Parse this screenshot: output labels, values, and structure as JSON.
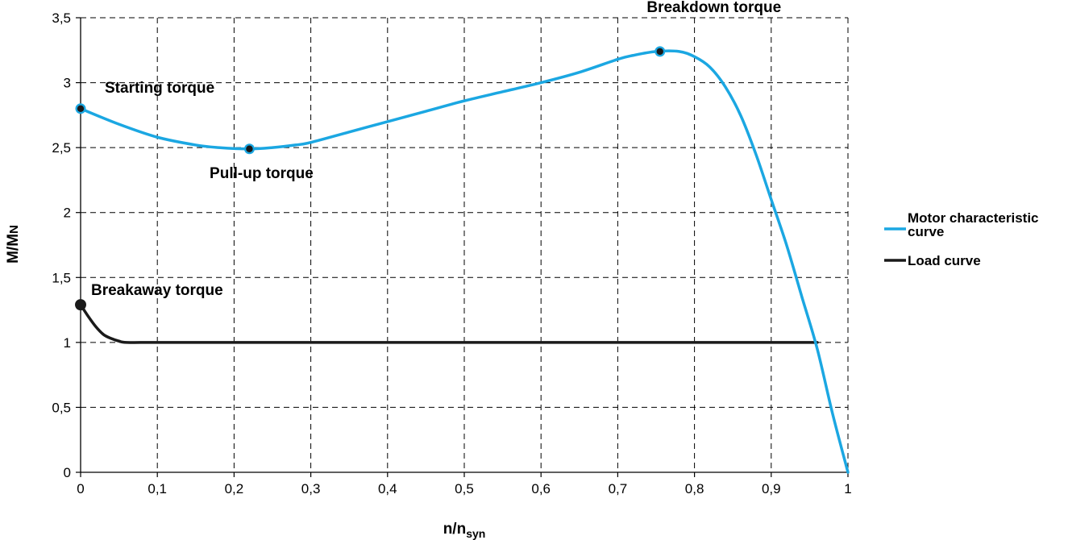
{
  "chart_data": {
    "type": "line",
    "xlabel_main": "n/n",
    "xlabel_sub": "syn",
    "ylabel_main": "M/M",
    "ylabel_sub": "N",
    "xlim": [
      0,
      1
    ],
    "ylim": [
      0,
      3.5
    ],
    "x_ticks": [
      0,
      0.1,
      0.2,
      0.3,
      0.4,
      0.5,
      0.6,
      0.7,
      0.8,
      0.9,
      1
    ],
    "x_tick_labels": [
      "0",
      "0,1",
      "0,2",
      "0,3",
      "0,4",
      "0,5",
      "0,6",
      "0,7",
      "0,8",
      "0,9",
      "1"
    ],
    "y_ticks": [
      0,
      0.5,
      1,
      1.5,
      2,
      2.5,
      3,
      3.5
    ],
    "y_tick_labels": [
      "0",
      "0,5",
      "1",
      "1,5",
      "2",
      "2,5",
      "3",
      "3,5"
    ],
    "grid": true,
    "legend_position": "right",
    "series": [
      {
        "name": "Motor characteristic curve",
        "legend_lines": [
          "Motor characteristic",
          "curve"
        ],
        "color": "#1BA7E2",
        "x": [
          0,
          0.05,
          0.1,
          0.15,
          0.18,
          0.22,
          0.25,
          0.28,
          0.3,
          0.35,
          0.4,
          0.45,
          0.5,
          0.55,
          0.6,
          0.65,
          0.7,
          0.72,
          0.75,
          0.78,
          0.8,
          0.82,
          0.84,
          0.86,
          0.88,
          0.9,
          0.92,
          0.94,
          0.96,
          0.98,
          1.0
        ],
        "y": [
          2.8,
          2.68,
          2.58,
          2.52,
          2.5,
          2.49,
          2.5,
          2.52,
          2.54,
          2.62,
          2.7,
          2.78,
          2.86,
          2.93,
          3.0,
          3.08,
          3.18,
          3.21,
          3.24,
          3.24,
          3.2,
          3.12,
          2.97,
          2.75,
          2.45,
          2.1,
          1.75,
          1.35,
          0.95,
          0.45,
          0.0
        ]
      },
      {
        "name": "Load curve",
        "legend_lines": [
          "Load curve"
        ],
        "color": "#1A1A1A",
        "x": [
          0,
          0.01,
          0.02,
          0.03,
          0.04,
          0.05,
          0.06,
          0.1,
          0.2,
          0.3,
          0.4,
          0.5,
          0.6,
          0.7,
          0.8,
          0.9,
          0.96
        ],
        "y": [
          1.29,
          1.2,
          1.12,
          1.06,
          1.03,
          1.01,
          1.0,
          1.0,
          1.0,
          1.0,
          1.0,
          1.0,
          1.0,
          1.0,
          1.0,
          1.0,
          1.0
        ]
      }
    ],
    "annotations": [
      {
        "id": "starting",
        "text": "Starting torque",
        "x": 0.0,
        "y": 2.8,
        "marker_series": 0
      },
      {
        "id": "pullup",
        "text": "Pull-up torque",
        "x": 0.22,
        "y": 2.49,
        "marker_series": 0
      },
      {
        "id": "breakdown",
        "text": "Breakdown torque",
        "x": 0.755,
        "y": 3.24,
        "marker_series": 0
      },
      {
        "id": "breakaway",
        "text": "Breakaway torque",
        "x": 0.0,
        "y": 1.29,
        "marker_series": 1
      }
    ]
  }
}
